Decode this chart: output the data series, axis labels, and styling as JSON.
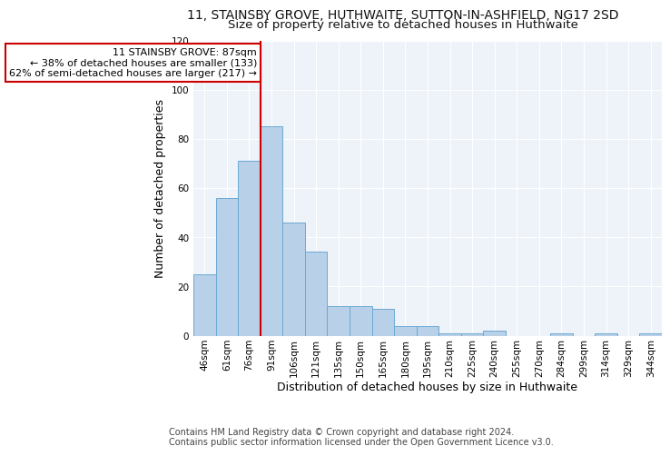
{
  "title": "11, STAINSBY GROVE, HUTHWAITE, SUTTON-IN-ASHFIELD, NG17 2SD",
  "subtitle": "Size of property relative to detached houses in Huthwaite",
  "xlabel_bottom": "Distribution of detached houses by size in Huthwaite",
  "ylabel": "Number of detached properties",
  "bins": [
    "46sqm",
    "61sqm",
    "76sqm",
    "91sqm",
    "106sqm",
    "121sqm",
    "135sqm",
    "150sqm",
    "165sqm",
    "180sqm",
    "195sqm",
    "210sqm",
    "225sqm",
    "240sqm",
    "255sqm",
    "270sqm",
    "284sqm",
    "299sqm",
    "314sqm",
    "329sqm",
    "344sqm"
  ],
  "values": [
    25,
    56,
    71,
    85,
    46,
    34,
    12,
    12,
    11,
    4,
    4,
    1,
    1,
    2,
    0,
    0,
    1,
    0,
    1,
    0,
    1
  ],
  "bar_color": "#b8d0e8",
  "bar_edge_color": "#6aaad4",
  "vline_x_index": 3,
  "vline_color": "#cc0000",
  "annotation_text": "11 STAINSBY GROVE: 87sqm\n← 38% of detached houses are smaller (133)\n62% of semi-detached houses are larger (217) →",
  "annotation_box_color": "#ffffff",
  "annotation_box_edge": "#cc0000",
  "ylim": [
    0,
    120
  ],
  "yticks": [
    0,
    20,
    40,
    60,
    80,
    100,
    120
  ],
  "footnote": "Contains HM Land Registry data © Crown copyright and database right 2024.\nContains public sector information licensed under the Open Government Licence v3.0.",
  "bg_color": "#eef2f9",
  "fig_bg_color": "#ffffff",
  "title_fontsize": 10,
  "subtitle_fontsize": 9.5,
  "tick_fontsize": 7.5,
  "ylabel_fontsize": 9,
  "xlabel_fontsize": 9,
  "footnote_fontsize": 7,
  "annotation_fontsize": 8
}
